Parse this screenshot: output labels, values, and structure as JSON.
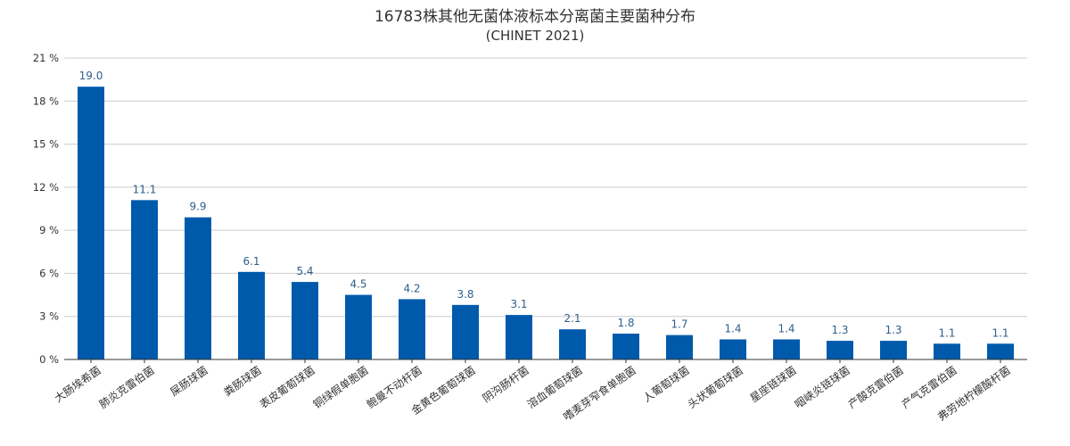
{
  "chart_data": {
    "type": "bar",
    "title": "16783株其他无菌体液标本分离菌主要菌种分布",
    "subtitle": "(CHINET 2021)",
    "xlabel": "",
    "ylabel": "",
    "ylim": [
      0,
      21
    ],
    "yticks": [
      0,
      3,
      6,
      9,
      12,
      15,
      18,
      21
    ],
    "ytick_labels": [
      "0 %",
      "3 %",
      "6 %",
      "9 %",
      "12 %",
      "15 %",
      "18 %",
      "21 %"
    ],
    "grid": true,
    "legend": "none",
    "bar_color": "#005aab",
    "categories": [
      "大肠埃希菌",
      "肺炎克雷伯菌",
      "屎肠球菌",
      "粪肠球菌",
      "表皮葡萄球菌",
      "铜绿假单胞菌",
      "鲍曼不动杆菌",
      "金黄色葡萄球菌",
      "阴沟肠杆菌",
      "溶血葡萄球菌",
      "嗜麦芽窄食单胞菌",
      "人葡萄球菌",
      "头状葡萄球菌",
      "星座链球菌",
      "咽峡炎链球菌",
      "产酸克雷伯菌",
      "产气克雷伯菌",
      "弗劳地柠檬酸杆菌"
    ],
    "values": [
      19.0,
      11.1,
      9.9,
      6.1,
      5.4,
      4.5,
      4.2,
      3.8,
      3.1,
      2.1,
      1.8,
      1.7,
      1.4,
      1.4,
      1.3,
      1.3,
      1.1,
      1.1
    ],
    "data_labels": [
      "19.0",
      "11.1",
      "9.9",
      "6.1",
      "5.4",
      "4.5",
      "4.2",
      "3.8",
      "3.1",
      "2.1",
      "1.8",
      "1.7",
      "1.4",
      "1.4",
      "1.3",
      "1.3",
      "1.1",
      "1.1"
    ]
  }
}
